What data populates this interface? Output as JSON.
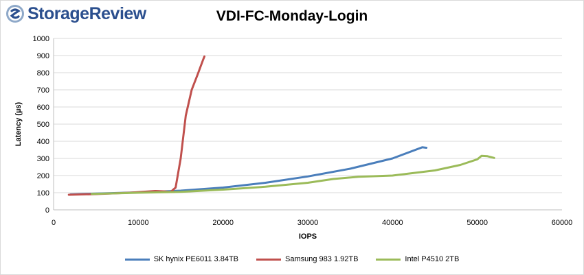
{
  "logo": {
    "text": "StorageReview",
    "icon": "storagereview-logo-icon",
    "color": "#2b4f8e"
  },
  "chart_data": {
    "type": "line",
    "title": "VDI-FC-Monday-Login",
    "xlabel": "IOPS",
    "ylabel": "Latency (µs)",
    "xlim": [
      0,
      60000
    ],
    "ylim": [
      0,
      1000
    ],
    "xticks": [
      0,
      10000,
      20000,
      30000,
      40000,
      50000,
      60000
    ],
    "yticks": [
      0,
      100,
      200,
      300,
      400,
      500,
      600,
      700,
      800,
      900,
      1000
    ],
    "grid": true,
    "legend_position": "bottom",
    "series": [
      {
        "name": "SK hynix PE6011 3.84TB",
        "color": "#4a7ebb",
        "points": [
          [
            2000,
            90
          ],
          [
            5000,
            95
          ],
          [
            10000,
            102
          ],
          [
            15000,
            112
          ],
          [
            20000,
            130
          ],
          [
            25000,
            158
          ],
          [
            30000,
            195
          ],
          [
            35000,
            240
          ],
          [
            40000,
            300
          ],
          [
            43500,
            365
          ],
          [
            44000,
            362
          ]
        ]
      },
      {
        "name": "Samsung 983 1.92TB",
        "color": "#c0504d",
        "points": [
          [
            1800,
            88
          ],
          [
            5000,
            92
          ],
          [
            9000,
            100
          ],
          [
            12000,
            110
          ],
          [
            13000,
            108
          ],
          [
            13800,
            104
          ],
          [
            14400,
            130
          ],
          [
            15000,
            300
          ],
          [
            15600,
            550
          ],
          [
            16300,
            700
          ],
          [
            17000,
            790
          ],
          [
            17600,
            870
          ],
          [
            17800,
            895
          ]
        ]
      },
      {
        "name": "Intel P4510 2TB",
        "color": "#9bbb59",
        "points": [
          [
            4500,
            93
          ],
          [
            10000,
            100
          ],
          [
            15000,
            105
          ],
          [
            20000,
            118
          ],
          [
            25000,
            135
          ],
          [
            30000,
            158
          ],
          [
            33000,
            180
          ],
          [
            36000,
            193
          ],
          [
            40000,
            200
          ],
          [
            45000,
            230
          ],
          [
            48000,
            262
          ],
          [
            50000,
            295
          ],
          [
            50500,
            315
          ],
          [
            51200,
            313
          ],
          [
            52000,
            303
          ]
        ]
      }
    ]
  }
}
